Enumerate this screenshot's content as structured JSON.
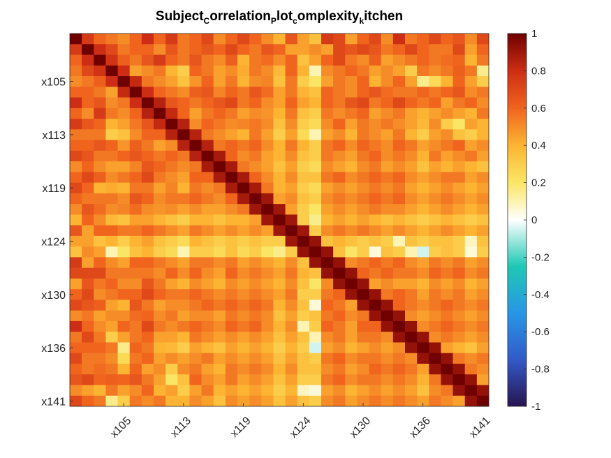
{
  "chart_data": {
    "type": "heatmap",
    "title_segments": [
      {
        "text": "Subject",
        "sub": false
      },
      {
        "text": "C",
        "sub": true
      },
      {
        "text": "orrelation",
        "sub": false
      },
      {
        "text": "P",
        "sub": true
      },
      {
        "text": "lot",
        "sub": false
      },
      {
        "text": "c",
        "sub": true
      },
      {
        "text": "omplexity",
        "sub": false
      },
      {
        "text": "k",
        "sub": true
      },
      {
        "text": "itchen",
        "sub": false
      }
    ],
    "variable_count": 35,
    "tick_labels": [
      "x105",
      "x113",
      "x119",
      "x124",
      "x130",
      "x136",
      "x141"
    ],
    "tick_positions": [
      5,
      10,
      15,
      20,
      25,
      30,
      35
    ],
    "colorbar": {
      "range": [
        -1,
        1
      ],
      "ticks": [
        1,
        0.8,
        0.6,
        0.4,
        0.2,
        0,
        -0.2,
        -0.4,
        -0.6,
        -0.8,
        -1
      ],
      "tick_labels": [
        "1",
        "0.8",
        "0.6",
        "0.4",
        "0.2",
        "0",
        "-0.2",
        "-0.4",
        "-0.6",
        "-0.8",
        "-1"
      ],
      "colormap": "blue-cyan-white-yellow-orange-darkred"
    },
    "matrix": [
      [
        1.0,
        0.75,
        0.6,
        0.55,
        0.5,
        0.6,
        0.8,
        0.6,
        0.75,
        0.55,
        0.6,
        0.7,
        0.5,
        0.6,
        0.7,
        0.6,
        0.5,
        0.4,
        0.65,
        0.45,
        0.35,
        0.75,
        0.7,
        0.45,
        0.6,
        0.7,
        0.5,
        0.8,
        0.55,
        0.6,
        0.7,
        0.6,
        0.65,
        0.5,
        0.7
      ],
      [
        0.75,
        1.0,
        0.8,
        0.7,
        0.55,
        0.6,
        0.6,
        0.5,
        0.65,
        0.55,
        0.6,
        0.65,
        0.6,
        0.7,
        0.6,
        0.55,
        0.65,
        0.6,
        0.45,
        0.45,
        0.5,
        0.45,
        0.7,
        0.65,
        0.7,
        0.65,
        0.55,
        0.6,
        0.7,
        0.6,
        0.55,
        0.55,
        0.7,
        0.45,
        0.6
      ],
      [
        0.6,
        0.8,
        1.0,
        0.78,
        0.62,
        0.55,
        0.65,
        0.75,
        0.6,
        0.55,
        0.65,
        0.55,
        0.5,
        0.62,
        0.4,
        0.55,
        0.58,
        0.5,
        0.6,
        0.35,
        0.45,
        0.6,
        0.7,
        0.55,
        0.5,
        0.62,
        0.45,
        0.5,
        0.55,
        0.6,
        0.55,
        0.58,
        0.6,
        0.4,
        0.55
      ],
      [
        0.55,
        0.7,
        0.78,
        1.0,
        0.8,
        0.45,
        0.5,
        0.55,
        0.4,
        0.3,
        0.6,
        0.55,
        0.45,
        0.5,
        0.42,
        0.55,
        0.5,
        0.38,
        0.6,
        0.4,
        0.1,
        0.5,
        0.55,
        0.6,
        0.55,
        0.45,
        0.5,
        0.45,
        0.3,
        0.55,
        0.5,
        0.55,
        0.62,
        0.55,
        0.15
      ],
      [
        0.5,
        0.55,
        0.62,
        0.8,
        1.0,
        0.82,
        0.55,
        0.5,
        0.45,
        0.35,
        0.48,
        0.6,
        0.45,
        0.55,
        0.4,
        0.5,
        0.52,
        0.35,
        0.55,
        0.3,
        0.2,
        0.45,
        0.55,
        0.5,
        0.6,
        0.4,
        0.5,
        0.6,
        0.45,
        0.15,
        0.25,
        0.4,
        0.6,
        0.45,
        0.3
      ],
      [
        0.6,
        0.6,
        0.55,
        0.45,
        0.82,
        1.0,
        0.8,
        0.6,
        0.55,
        0.5,
        0.62,
        0.65,
        0.52,
        0.6,
        0.55,
        0.65,
        0.58,
        0.45,
        0.55,
        0.4,
        0.35,
        0.6,
        0.55,
        0.5,
        0.6,
        0.65,
        0.58,
        0.55,
        0.55,
        0.6,
        0.55,
        0.6,
        0.65,
        0.5,
        0.55
      ],
      [
        0.8,
        0.6,
        0.65,
        0.5,
        0.55,
        0.8,
        1.0,
        0.85,
        0.65,
        0.6,
        0.55,
        0.6,
        0.65,
        0.7,
        0.55,
        0.6,
        0.5,
        0.45,
        0.6,
        0.45,
        0.4,
        0.6,
        0.55,
        0.65,
        0.7,
        0.55,
        0.6,
        0.7,
        0.6,
        0.55,
        0.6,
        0.45,
        0.55,
        0.6,
        0.5
      ],
      [
        0.6,
        0.5,
        0.75,
        0.55,
        0.5,
        0.6,
        0.85,
        1.0,
        0.82,
        0.6,
        0.45,
        0.55,
        0.6,
        0.55,
        0.45,
        0.5,
        0.48,
        0.4,
        0.55,
        0.35,
        0.3,
        0.55,
        0.5,
        0.55,
        0.6,
        0.45,
        0.5,
        0.55,
        0.45,
        0.4,
        0.45,
        0.5,
        0.45,
        0.4,
        0.55
      ],
      [
        0.75,
        0.65,
        0.6,
        0.4,
        0.45,
        0.55,
        0.65,
        0.82,
        1.0,
        0.85,
        0.5,
        0.6,
        0.55,
        0.5,
        0.52,
        0.55,
        0.5,
        0.35,
        0.5,
        0.3,
        0.25,
        0.5,
        0.6,
        0.45,
        0.55,
        0.5,
        0.55,
        0.5,
        0.45,
        0.38,
        0.5,
        0.3,
        0.2,
        0.45,
        0.4
      ],
      [
        0.55,
        0.55,
        0.55,
        0.3,
        0.35,
        0.5,
        0.6,
        0.6,
        0.85,
        1.0,
        0.85,
        0.55,
        0.5,
        0.45,
        0.4,
        0.55,
        0.45,
        0.3,
        0.45,
        0.25,
        0.1,
        0.45,
        0.5,
        0.4,
        0.55,
        0.5,
        0.45,
        0.55,
        0.4,
        0.3,
        0.45,
        0.5,
        0.35,
        0.3,
        0.4
      ],
      [
        0.6,
        0.6,
        0.65,
        0.6,
        0.48,
        0.62,
        0.55,
        0.45,
        0.5,
        0.85,
        1.0,
        0.85,
        0.55,
        0.6,
        0.55,
        0.6,
        0.5,
        0.4,
        0.55,
        0.4,
        0.3,
        0.55,
        0.6,
        0.5,
        0.6,
        0.55,
        0.5,
        0.6,
        0.55,
        0.45,
        0.5,
        0.55,
        0.6,
        0.45,
        0.5
      ],
      [
        0.7,
        0.65,
        0.55,
        0.55,
        0.6,
        0.65,
        0.6,
        0.55,
        0.6,
        0.55,
        0.85,
        1.0,
        0.88,
        0.6,
        0.5,
        0.55,
        0.45,
        0.4,
        0.5,
        0.35,
        0.3,
        0.55,
        0.5,
        0.45,
        0.55,
        0.6,
        0.5,
        0.55,
        0.5,
        0.4,
        0.55,
        0.45,
        0.5,
        0.55,
        0.45
      ],
      [
        0.5,
        0.6,
        0.5,
        0.45,
        0.45,
        0.52,
        0.65,
        0.6,
        0.55,
        0.5,
        0.55,
        0.88,
        1.0,
        0.88,
        0.55,
        0.5,
        0.45,
        0.35,
        0.45,
        0.3,
        0.25,
        0.5,
        0.45,
        0.4,
        0.5,
        0.55,
        0.45,
        0.5,
        0.45,
        0.35,
        0.45,
        0.4,
        0.45,
        0.4,
        0.35
      ],
      [
        0.6,
        0.7,
        0.62,
        0.5,
        0.55,
        0.6,
        0.7,
        0.55,
        0.5,
        0.45,
        0.6,
        0.6,
        0.88,
        1.0,
        0.88,
        0.6,
        0.5,
        0.4,
        0.5,
        0.35,
        0.35,
        0.55,
        0.6,
        0.5,
        0.55,
        0.6,
        0.55,
        0.6,
        0.5,
        0.45,
        0.5,
        0.55,
        0.55,
        0.45,
        0.5
      ],
      [
        0.7,
        0.6,
        0.4,
        0.42,
        0.4,
        0.55,
        0.55,
        0.45,
        0.52,
        0.4,
        0.55,
        0.5,
        0.55,
        0.88,
        1.0,
        0.88,
        0.55,
        0.4,
        0.45,
        0.3,
        0.25,
        0.45,
        0.5,
        0.45,
        0.5,
        0.55,
        0.5,
        0.55,
        0.45,
        0.4,
        0.45,
        0.5,
        0.45,
        0.4,
        0.45
      ],
      [
        0.6,
        0.55,
        0.55,
        0.55,
        0.5,
        0.65,
        0.6,
        0.5,
        0.55,
        0.55,
        0.6,
        0.55,
        0.5,
        0.6,
        0.88,
        1.0,
        0.9,
        0.45,
        0.5,
        0.35,
        0.3,
        0.5,
        0.55,
        0.5,
        0.55,
        0.6,
        0.55,
        0.6,
        0.5,
        0.45,
        0.5,
        0.55,
        0.5,
        0.45,
        0.5
      ],
      [
        0.5,
        0.65,
        0.58,
        0.5,
        0.52,
        0.58,
        0.5,
        0.48,
        0.5,
        0.45,
        0.5,
        0.45,
        0.45,
        0.5,
        0.55,
        0.9,
        1.0,
        0.9,
        0.45,
        0.3,
        0.2,
        0.45,
        0.5,
        0.45,
        0.5,
        0.55,
        0.5,
        0.5,
        0.45,
        0.4,
        0.45,
        0.5,
        0.45,
        0.4,
        0.45
      ],
      [
        0.4,
        0.6,
        0.5,
        0.38,
        0.35,
        0.45,
        0.45,
        0.4,
        0.35,
        0.3,
        0.4,
        0.4,
        0.35,
        0.4,
        0.4,
        0.45,
        0.9,
        1.0,
        0.9,
        0.3,
        0.15,
        0.4,
        0.45,
        0.4,
        0.45,
        0.4,
        0.35,
        0.4,
        0.35,
        0.3,
        0.35,
        0.4,
        0.35,
        0.3,
        0.35
      ],
      [
        0.65,
        0.45,
        0.6,
        0.6,
        0.55,
        0.55,
        0.6,
        0.55,
        0.5,
        0.45,
        0.55,
        0.5,
        0.45,
        0.5,
        0.45,
        0.5,
        0.45,
        0.9,
        1.0,
        0.9,
        0.3,
        0.5,
        0.55,
        0.5,
        0.55,
        0.5,
        0.45,
        0.5,
        0.45,
        0.4,
        0.45,
        0.5,
        0.45,
        0.4,
        0.45
      ],
      [
        0.45,
        0.45,
        0.35,
        0.4,
        0.3,
        0.4,
        0.45,
        0.35,
        0.3,
        0.25,
        0.4,
        0.35,
        0.3,
        0.35,
        0.3,
        0.35,
        0.3,
        0.3,
        0.9,
        1.0,
        0.92,
        0.35,
        0.4,
        0.35,
        0.3,
        0.35,
        0.3,
        0.1,
        0.35,
        0.3,
        0.35,
        0.35,
        0.3,
        0.08,
        0.35
      ],
      [
        0.35,
        0.5,
        0.45,
        0.1,
        0.2,
        0.35,
        0.4,
        0.3,
        0.25,
        0.1,
        0.3,
        0.3,
        0.25,
        0.35,
        0.25,
        0.3,
        0.2,
        0.15,
        0.3,
        0.92,
        1.0,
        0.92,
        0.35,
        0.2,
        0.3,
        0.05,
        0.35,
        0.3,
        0.1,
        -0.05,
        0.3,
        0.35,
        0.3,
        0.05,
        0.3
      ],
      [
        0.75,
        0.45,
        0.6,
        0.5,
        0.45,
        0.6,
        0.6,
        0.55,
        0.5,
        0.45,
        0.55,
        0.55,
        0.5,
        0.55,
        0.45,
        0.5,
        0.45,
        0.4,
        0.5,
        0.35,
        0.92,
        1.0,
        0.92,
        0.5,
        0.55,
        0.6,
        0.55,
        0.6,
        0.5,
        0.45,
        0.55,
        0.5,
        0.55,
        0.45,
        0.5
      ],
      [
        0.7,
        0.7,
        0.7,
        0.55,
        0.55,
        0.55,
        0.55,
        0.5,
        0.6,
        0.5,
        0.6,
        0.5,
        0.45,
        0.6,
        0.5,
        0.55,
        0.5,
        0.45,
        0.55,
        0.4,
        0.35,
        0.92,
        1.0,
        0.92,
        0.6,
        0.55,
        0.6,
        0.55,
        0.55,
        0.5,
        0.6,
        0.55,
        0.6,
        0.5,
        0.55
      ],
      [
        0.45,
        0.65,
        0.55,
        0.6,
        0.5,
        0.5,
        0.65,
        0.55,
        0.45,
        0.4,
        0.5,
        0.45,
        0.4,
        0.5,
        0.45,
        0.5,
        0.45,
        0.4,
        0.5,
        0.35,
        0.2,
        0.5,
        0.92,
        1.0,
        0.92,
        0.45,
        0.5,
        0.45,
        0.45,
        0.4,
        0.5,
        0.45,
        0.5,
        0.4,
        0.45
      ],
      [
        0.6,
        0.7,
        0.5,
        0.55,
        0.6,
        0.6,
        0.7,
        0.6,
        0.55,
        0.55,
        0.6,
        0.55,
        0.5,
        0.55,
        0.5,
        0.55,
        0.5,
        0.45,
        0.55,
        0.3,
        0.3,
        0.55,
        0.6,
        0.92,
        1.0,
        0.92,
        0.55,
        0.6,
        0.55,
        0.45,
        0.55,
        0.5,
        0.55,
        0.45,
        0.5
      ],
      [
        0.7,
        0.65,
        0.62,
        0.45,
        0.4,
        0.65,
        0.55,
        0.45,
        0.5,
        0.5,
        0.55,
        0.6,
        0.55,
        0.6,
        0.55,
        0.6,
        0.55,
        0.4,
        0.5,
        0.35,
        0.05,
        0.6,
        0.55,
        0.45,
        0.92,
        1.0,
        0.92,
        0.6,
        0.55,
        0.5,
        0.55,
        0.6,
        0.55,
        0.5,
        0.55
      ],
      [
        0.5,
        0.55,
        0.45,
        0.5,
        0.5,
        0.58,
        0.6,
        0.5,
        0.55,
        0.45,
        0.5,
        0.5,
        0.45,
        0.55,
        0.5,
        0.55,
        0.5,
        0.35,
        0.45,
        0.3,
        0.35,
        0.55,
        0.6,
        0.5,
        0.55,
        0.92,
        1.0,
        0.92,
        0.5,
        0.45,
        0.5,
        0.55,
        0.5,
        0.45,
        0.5
      ],
      [
        0.8,
        0.6,
        0.5,
        0.45,
        0.6,
        0.55,
        0.7,
        0.55,
        0.5,
        0.55,
        0.6,
        0.55,
        0.5,
        0.6,
        0.55,
        0.6,
        0.5,
        0.4,
        0.5,
        0.1,
        0.3,
        0.6,
        0.55,
        0.45,
        0.6,
        0.6,
        0.92,
        1.0,
        0.92,
        0.5,
        0.55,
        0.6,
        0.55,
        0.5,
        0.55
      ],
      [
        0.55,
        0.7,
        0.55,
        0.3,
        0.45,
        0.55,
        0.6,
        0.45,
        0.45,
        0.4,
        0.55,
        0.5,
        0.45,
        0.5,
        0.45,
        0.5,
        0.45,
        0.35,
        0.45,
        0.35,
        0.1,
        0.5,
        0.55,
        0.45,
        0.55,
        0.55,
        0.5,
        0.92,
        1.0,
        0.92,
        0.5,
        0.55,
        0.5,
        0.45,
        0.5
      ],
      [
        0.6,
        0.6,
        0.6,
        0.55,
        0.15,
        0.6,
        0.55,
        0.4,
        0.38,
        0.3,
        0.45,
        0.4,
        0.35,
        0.45,
        0.4,
        0.45,
        0.4,
        0.3,
        0.4,
        0.3,
        -0.05,
        0.45,
        0.5,
        0.4,
        0.45,
        0.5,
        0.45,
        0.5,
        0.92,
        1.0,
        0.92,
        0.45,
        0.4,
        0.35,
        0.45
      ],
      [
        0.7,
        0.55,
        0.55,
        0.5,
        0.25,
        0.55,
        0.6,
        0.45,
        0.5,
        0.45,
        0.5,
        0.55,
        0.45,
        0.5,
        0.45,
        0.5,
        0.45,
        0.35,
        0.45,
        0.35,
        0.3,
        0.55,
        0.6,
        0.5,
        0.55,
        0.55,
        0.5,
        0.55,
        0.5,
        0.92,
        1.0,
        0.92,
        0.55,
        0.5,
        0.55
      ],
      [
        0.6,
        0.55,
        0.58,
        0.55,
        0.4,
        0.6,
        0.45,
        0.5,
        0.3,
        0.5,
        0.55,
        0.45,
        0.4,
        0.55,
        0.5,
        0.55,
        0.5,
        0.4,
        0.5,
        0.35,
        0.35,
        0.5,
        0.55,
        0.45,
        0.5,
        0.6,
        0.55,
        0.6,
        0.55,
        0.45,
        0.92,
        1.0,
        0.92,
        0.55,
        0.5
      ],
      [
        0.65,
        0.7,
        0.6,
        0.62,
        0.6,
        0.65,
        0.55,
        0.45,
        0.2,
        0.35,
        0.6,
        0.5,
        0.45,
        0.55,
        0.45,
        0.5,
        0.45,
        0.35,
        0.45,
        0.3,
        0.3,
        0.55,
        0.6,
        0.5,
        0.55,
        0.55,
        0.5,
        0.55,
        0.5,
        0.4,
        0.55,
        0.92,
        1.0,
        0.92,
        0.45
      ],
      [
        0.5,
        0.45,
        0.4,
        0.55,
        0.45,
        0.5,
        0.6,
        0.4,
        0.45,
        0.3,
        0.45,
        0.55,
        0.4,
        0.45,
        0.4,
        0.45,
        0.4,
        0.3,
        0.4,
        0.08,
        0.05,
        0.45,
        0.5,
        0.4,
        0.45,
        0.5,
        0.45,
        0.5,
        0.45,
        0.35,
        0.5,
        0.55,
        0.92,
        1.0,
        0.92
      ],
      [
        0.7,
        0.6,
        0.55,
        0.15,
        0.3,
        0.55,
        0.5,
        0.55,
        0.4,
        0.4,
        0.5,
        0.45,
        0.35,
        0.5,
        0.45,
        0.5,
        0.45,
        0.35,
        0.45,
        0.35,
        0.3,
        0.5,
        0.55,
        0.45,
        0.5,
        0.55,
        0.5,
        0.55,
        0.5,
        0.45,
        0.55,
        0.5,
        0.45,
        0.92,
        1.0
      ]
    ]
  }
}
